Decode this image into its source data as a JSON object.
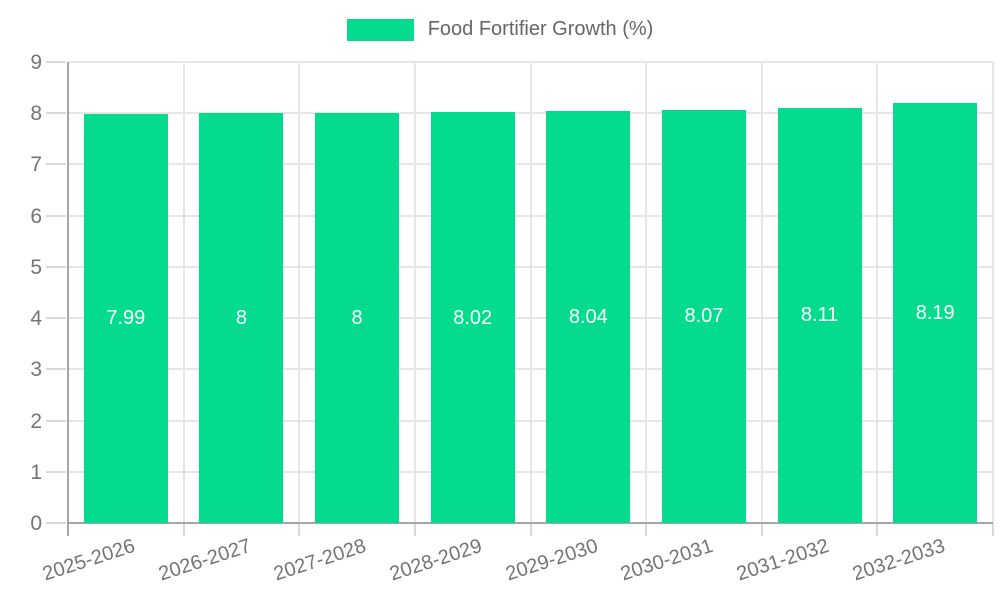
{
  "chart_data": {
    "type": "bar",
    "title": "Food Fortifier Growth (%)",
    "categories": [
      "2025-2026",
      "2026-2027",
      "2027-2028",
      "2028-2029",
      "2029-2030",
      "2030-2031",
      "2031-2032",
      "2032-2033"
    ],
    "values": [
      7.99,
      8,
      8,
      8.02,
      8.04,
      8.07,
      8.11,
      8.19
    ],
    "value_labels": [
      "7.99",
      "8",
      "8",
      "8.02",
      "8.04",
      "8.07",
      "8.11",
      "8.19"
    ],
    "xlabel": "",
    "ylabel": "",
    "ylim": [
      0,
      9
    ],
    "ytick_step": 1,
    "ytick_labels": [
      "0",
      "1",
      "2",
      "3",
      "4",
      "5",
      "6",
      "7",
      "8",
      "9"
    ],
    "legend_position": "top-center",
    "grid": true,
    "bar_label_position": "middle",
    "colors": {
      "bar": "#05DB8F",
      "grid": "#e6e6e6",
      "axis": "#a6a6a6",
      "tick": "#d9d9d9",
      "axis_label": "#757575",
      "bar_label": "#ffffff",
      "legend_text": "#666666",
      "background": "#ffffff"
    }
  }
}
